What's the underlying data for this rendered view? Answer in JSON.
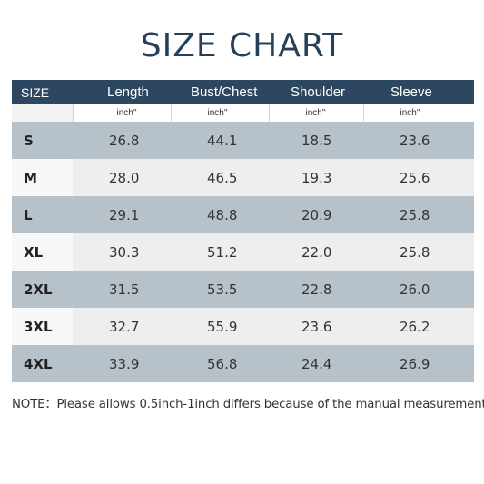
{
  "title": "SIZE CHART",
  "header": {
    "size": "SIZE",
    "length": "Length",
    "bust": "Bust/Chest",
    "shoulder": "Shoulder",
    "sleeve": "Sleeve"
  },
  "units": {
    "length": "inch''",
    "bust": "inch''",
    "shoulder": "inch''",
    "sleeve": "inch''"
  },
  "rows": [
    {
      "size": "S",
      "length": "26.8",
      "bust": "44.1",
      "shoulder": "18.5",
      "sleeve": "23.6"
    },
    {
      "size": "M",
      "length": "28.0",
      "bust": "46.5",
      "shoulder": "19.3",
      "sleeve": "25.6"
    },
    {
      "size": "L",
      "length": "29.1",
      "bust": "48.8",
      "shoulder": "20.9",
      "sleeve": "25.8"
    },
    {
      "size": "XL",
      "length": "30.3",
      "bust": "51.2",
      "shoulder": "22.0",
      "sleeve": "25.8"
    },
    {
      "size": "2XL",
      "length": "31.5",
      "bust": "53.5",
      "shoulder": "22.8",
      "sleeve": "26.0"
    },
    {
      "size": "3XL",
      "length": "32.7",
      "bust": "55.9",
      "shoulder": "23.6",
      "sleeve": "26.2"
    },
    {
      "size": "4XL",
      "length": "33.9",
      "bust": "56.8",
      "shoulder": "24.4",
      "sleeve": "26.9"
    }
  ],
  "note": "NOTE：Please allows 0.5inch-1inch differs because of the manual measurement.",
  "colors": {
    "header_bg": "#2c475f",
    "title": "#27405a",
    "row_dark": "#b6c1ca",
    "row_light": "#eeeeee"
  }
}
